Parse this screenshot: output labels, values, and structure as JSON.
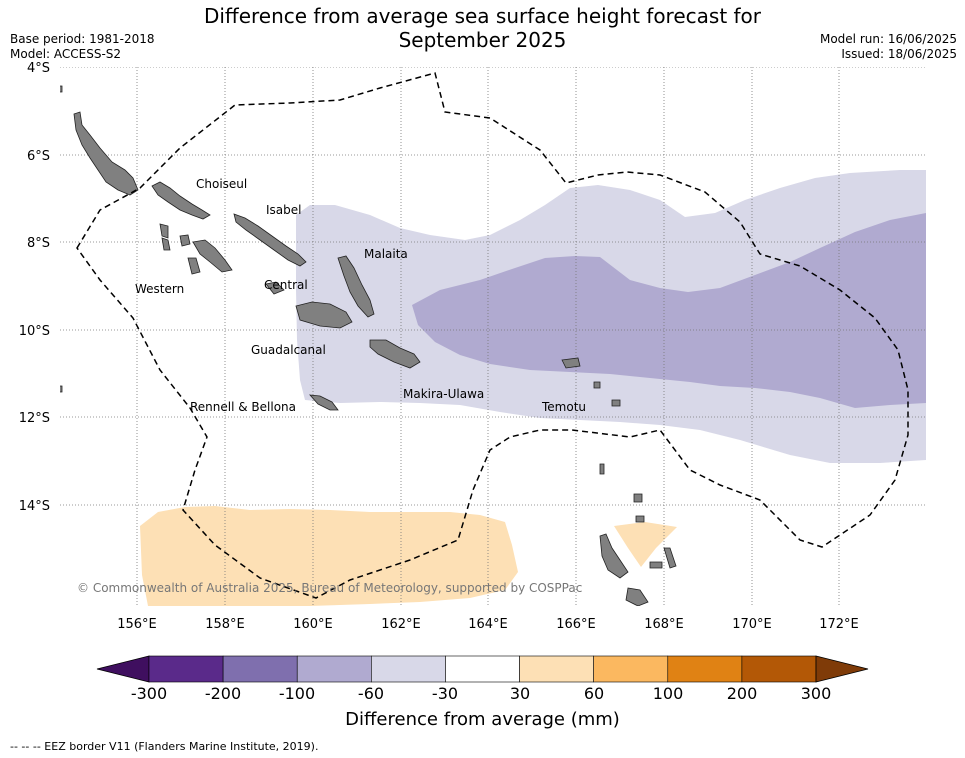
{
  "header": {
    "title_line1": "Difference from average sea surface height forecast for",
    "title_line2": "September 2025",
    "base_period": "Base period: 1981-2018",
    "model": "Model: ACCESS-S2",
    "model_run": "Model run: 16/06/2025",
    "issued": "Issued: 18/06/2025"
  },
  "map": {
    "lat_labels": [
      "4°S",
      "6°S",
      "8°S",
      "10°S",
      "12°S",
      "14°S"
    ],
    "lon_labels": [
      "156°E",
      "158°E",
      "160°E",
      "162°E",
      "164°E",
      "166°E",
      "168°E",
      "170°E",
      "172°E"
    ],
    "province_labels": [
      {
        "name": "Choiseul"
      },
      {
        "name": "Isabel"
      },
      {
        "name": "Malaita"
      },
      {
        "name": "Western"
      },
      {
        "name": "Central"
      },
      {
        "name": "Guadalcanal"
      },
      {
        "name": "Makira-Ulawa"
      },
      {
        "name": "Temotu"
      },
      {
        "name": "Rennell & Bellona"
      }
    ],
    "copyright": "© Commonwealth of Australia 2025, Bureau of Meteorology, supported by COSPPac",
    "colors": {
      "land": "#808080",
      "light_negative": "#d8d8e8",
      "medium_negative": "#b0aad0",
      "light_positive": "#fde0b5"
    }
  },
  "colorbar": {
    "label": "Difference from average (mm)",
    "ticks": [
      "-300",
      "-200",
      "-100",
      "-60",
      "-30",
      "30",
      "60",
      "100",
      "200",
      "300"
    ],
    "colors": [
      "#3f0f5f",
      "#5a2a8a",
      "#7f6fae",
      "#b0aad0",
      "#d8d8e8",
      "#ffffff",
      "#fde0b5",
      "#fbb860",
      "#e08214",
      "#b35806",
      "#7f3b08"
    ]
  },
  "footnote": "--  --  -- EEZ border V11 (Flanders Marine Institute, 2019)."
}
